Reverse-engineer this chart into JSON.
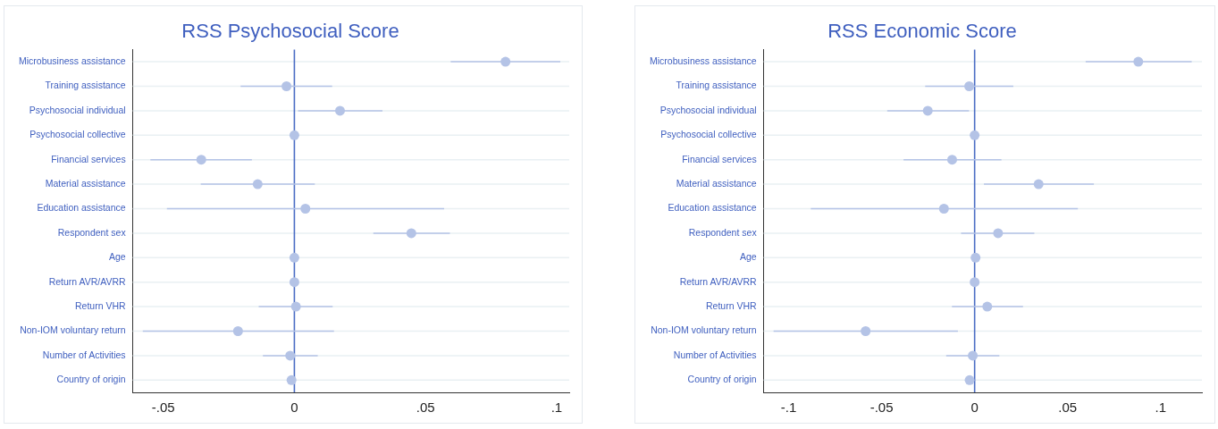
{
  "chart_data": [
    {
      "type": "scatter",
      "title": "RSS Psychosocial Score",
      "orientation": "horizontal",
      "marker": "circle",
      "grid": "y",
      "legend": false,
      "categories": [
        "Microbusiness assistance",
        "Training assistance",
        "Psychosocial individual",
        "Psychosocial collective",
        "Financial services",
        "Material assistance",
        "Education assistance",
        "Respondent sex",
        "Age",
        "Return AVR/AVRR",
        "Return VHR",
        "Non-IOM voluntary return",
        "Number of Activities",
        "Country of origin"
      ],
      "series": [
        {
          "color": "#b4c3e6",
          "values": [
            0.0805,
            -0.003,
            0.0174,
            0,
            -0.0355,
            -0.014,
            0.0042,
            0.0446,
            0,
            0,
            0.0006,
            -0.0215,
            -0.0016,
            -0.0011
          ],
          "errors": [
            [
              0.0596,
              0.1014
            ],
            [
              -0.0205,
              0.0144
            ],
            [
              0.0014,
              0.0336
            ],
            null,
            [
              -0.0549,
              -0.0162
            ],
            [
              -0.0357,
              0.0078
            ],
            [
              -0.0486,
              0.0571
            ],
            [
              0.0301,
              0.0593
            ],
            null,
            null,
            [
              -0.0136,
              0.0146
            ],
            [
              -0.0578,
              0.0151
            ],
            [
              -0.012,
              0.0089
            ],
            null
          ]
        }
      ],
      "xlim": [
        -0.0616,
        0.1048
      ],
      "xticks": [
        {
          "value": -0.05,
          "label": "-.05"
        },
        {
          "value": 0,
          "label": "0"
        },
        {
          "value": 0.05,
          "label": ".05"
        },
        {
          "value": 0.1,
          "label": ".1"
        }
      ],
      "ref_lines": [
        {
          "axis": "x",
          "value": 0,
          "color": "#4a6cc4"
        }
      ]
    },
    {
      "type": "scatter",
      "title": "RSS Economic Score",
      "orientation": "horizontal",
      "marker": "circle",
      "grid": "y",
      "legend": false,
      "categories": [
        "Microbusiness assistance",
        "Training assistance",
        "Psychosocial individual",
        "Psychosocial collective",
        "Financial services",
        "Material assistance",
        "Education assistance",
        "Respondent sex",
        "Age",
        "Return AVR/AVRR",
        "Return VHR",
        "Non-IOM voluntary return",
        "Number of Activities",
        "Country of origin"
      ],
      "series": [
        {
          "color": "#b4c3e6",
          "values": [
            0.088,
            -0.0029,
            -0.0252,
            0,
            -0.0121,
            0.0344,
            -0.0165,
            0.0126,
            0.0005,
            0,
            0.0068,
            -0.0586,
            -0.001,
            -0.0027
          ],
          "errors": [
            [
              0.0597,
              0.1167
            ],
            [
              -0.0266,
              0.0208
            ],
            [
              -0.047,
              -0.003
            ],
            null,
            [
              -0.0382,
              0.0144
            ],
            [
              0.005,
              0.0641
            ],
            [
              -0.0881,
              0.0555
            ],
            [
              -0.0073,
              0.0321
            ],
            null,
            null,
            [
              -0.0122,
              0.026
            ],
            [
              -0.1081,
              -0.009
            ],
            [
              -0.0153,
              0.0133
            ],
            null
          ]
        }
      ],
      "xlim": [
        -0.1134,
        0.1222
      ],
      "xticks": [
        {
          "value": -0.1,
          "label": "-.1"
        },
        {
          "value": -0.05,
          "label": "-.05"
        },
        {
          "value": 0,
          "label": "0"
        },
        {
          "value": 0.05,
          "label": ".05"
        },
        {
          "value": 0.1,
          "label": ".1"
        }
      ],
      "ref_lines": [
        {
          "axis": "x",
          "value": 0,
          "color": "#4a6cc4"
        }
      ]
    }
  ]
}
